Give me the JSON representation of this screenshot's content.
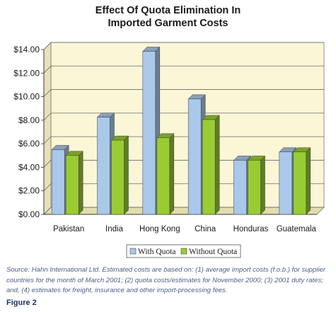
{
  "chart_data": {
    "type": "bar",
    "title_lines": [
      "Effect Of Quota Elimination In",
      "Imported Garment Costs"
    ],
    "categories": [
      "Pakistan",
      "India",
      "Hong Kong",
      "China",
      "Honduras",
      "Guatemala"
    ],
    "series": [
      {
        "name": "With Quota",
        "color": "#a9c8ea",
        "values": [
          5.5,
          8.25,
          13.85,
          9.8,
          4.6,
          5.3
        ]
      },
      {
        "name": "Without Quota",
        "color": "#99cc33",
        "values": [
          5.0,
          6.3,
          6.5,
          8.05,
          4.6,
          5.3
        ]
      }
    ],
    "y_ticks": [
      "$0.00",
      "$2.00",
      "$4.00",
      "$6.00",
      "$8.00",
      "$10.00",
      "$12.00",
      "$14.00"
    ],
    "ylim": [
      0,
      14
    ],
    "grid": true,
    "legend_position": "bottom-center",
    "background_color": "#fbf6d6"
  },
  "caption": "Source: Hahn International Ltd. Estimated costs are based on: (1) average import costs (f.o.b.) for supplier countries for the month of March 2001; (2) quota costs/estimates for November 2000; (3) 2001 duty rates; and, (4) estimates for freight, insurance and other import-processing fees.",
  "figure_label": "Figure 2"
}
